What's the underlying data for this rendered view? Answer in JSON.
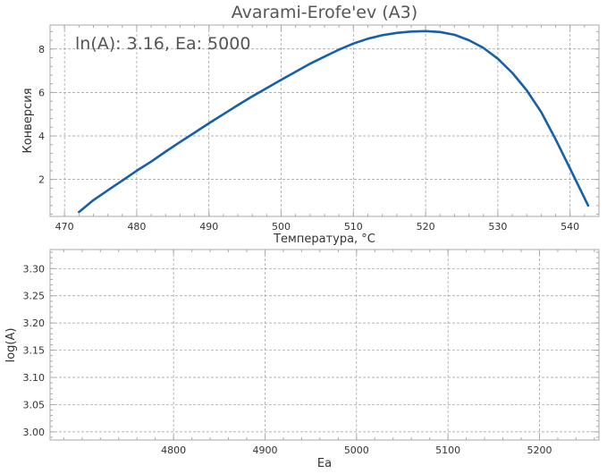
{
  "chart_data": [
    {
      "type": "line",
      "title": "Avarami-Erofe'ev (A3)",
      "annotation": "ln(A): 3.16, Ea: 5000",
      "xlabel": "Температура, °C",
      "ylabel": "Конверсия",
      "xlim": [
        468,
        544
      ],
      "ylim": [
        0.3,
        9.1
      ],
      "xticks": [
        470,
        480,
        490,
        500,
        510,
        520,
        530,
        540
      ],
      "yticks": [
        2,
        4,
        6,
        8
      ],
      "grid": true,
      "series": [
        {
          "color": "#1560a8",
          "x": [
            472,
            474,
            476,
            478,
            480,
            482,
            484,
            486,
            488,
            490,
            492,
            494,
            496,
            498,
            500,
            502,
            504,
            506,
            508,
            510,
            512,
            514,
            516,
            518,
            520,
            522,
            524,
            526,
            528,
            530,
            532,
            534,
            536,
            538,
            540,
            542.5
          ],
          "y": [
            0.5,
            1.05,
            1.5,
            1.95,
            2.4,
            2.82,
            3.28,
            3.72,
            4.15,
            4.58,
            5.0,
            5.42,
            5.82,
            6.2,
            6.58,
            6.95,
            7.32,
            7.65,
            7.97,
            8.25,
            8.47,
            8.63,
            8.74,
            8.8,
            8.82,
            8.78,
            8.65,
            8.4,
            8.05,
            7.55,
            6.9,
            6.1,
            5.1,
            3.85,
            2.5,
            0.8
          ]
        }
      ]
    },
    {
      "type": "scatter",
      "xlabel": "Ea",
      "ylabel": "log(A)",
      "xlim": [
        4665,
        5265
      ],
      "ylim": [
        2.985,
        3.335
      ],
      "xticks": [
        4800,
        4900,
        5000,
        5100,
        5200
      ],
      "xtick_labels": [
        "4800",
        "4900",
        "5000",
        "5100",
        "5200"
      ],
      "yticks": [
        3.0,
        3.05,
        3.1,
        3.15,
        3.2,
        3.25,
        3.3
      ],
      "ytick_labels": [
        "3.00",
        "3.05",
        "3.10",
        "3.15",
        "3.20",
        "3.25",
        "3.30"
      ],
      "grid": true,
      "series": []
    }
  ]
}
